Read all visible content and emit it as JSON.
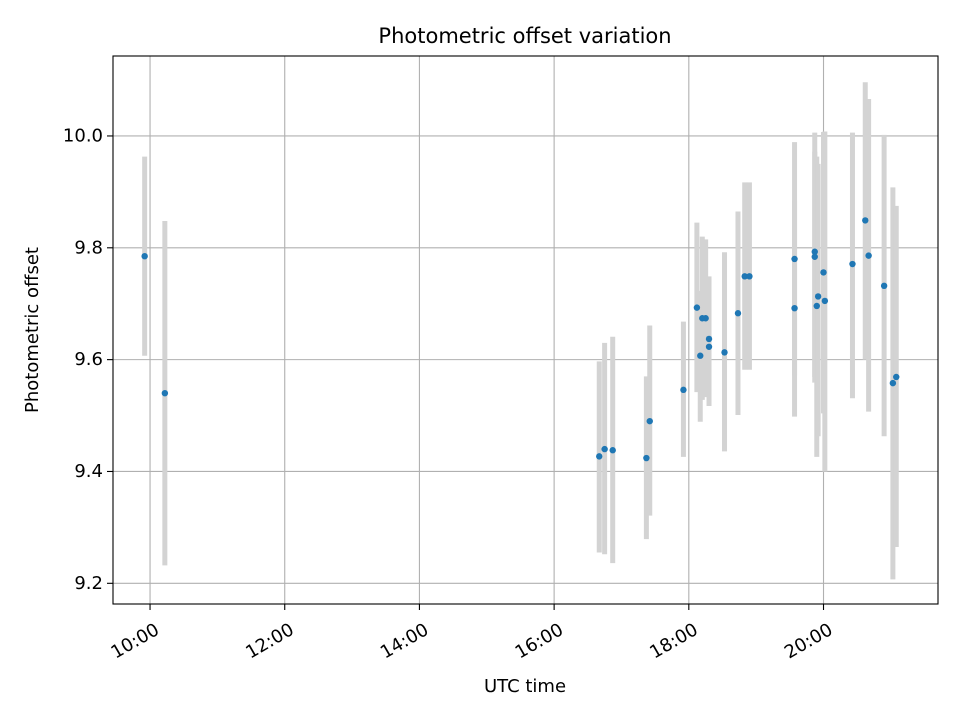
{
  "chart_data": {
    "type": "scatter",
    "title": "Photometric offset variation",
    "xlabel": "UTC time",
    "ylabel": "Photometric offset",
    "x_unit": "hours UTC",
    "xlim": [
      9.45,
      21.7
    ],
    "ylim": [
      9.163,
      10.143
    ],
    "x_ticks": [
      {
        "value": 10,
        "label": "10:00"
      },
      {
        "value": 12,
        "label": "12:00"
      },
      {
        "value": 14,
        "label": "14:00"
      },
      {
        "value": 16,
        "label": "16:00"
      },
      {
        "value": 18,
        "label": "18:00"
      },
      {
        "value": 20,
        "label": "20:00"
      }
    ],
    "y_ticks": [
      {
        "value": 9.2,
        "label": "9.2"
      },
      {
        "value": 9.4,
        "label": "9.4"
      },
      {
        "value": 9.6,
        "label": "9.6"
      },
      {
        "value": 9.8,
        "label": "9.8"
      },
      {
        "value": 10.0,
        "label": "10.0"
      }
    ],
    "grid": true,
    "point_color": "#1f77b4",
    "errorbar_color": "#d3d3d3",
    "points": [
      {
        "x": 9.92,
        "y": 9.785,
        "ylo": 9.607,
        "yhi": 9.963
      },
      {
        "x": 10.22,
        "y": 9.54,
        "ylo": 9.232,
        "yhi": 9.848
      },
      {
        "x": 16.67,
        "y": 9.427,
        "ylo": 9.255,
        "yhi": 9.597
      },
      {
        "x": 16.75,
        "y": 9.44,
        "ylo": 9.252,
        "yhi": 9.63
      },
      {
        "x": 16.87,
        "y": 9.438,
        "ylo": 9.236,
        "yhi": 9.641
      },
      {
        "x": 17.37,
        "y": 9.424,
        "ylo": 9.279,
        "yhi": 9.57
      },
      {
        "x": 17.42,
        "y": 9.49,
        "ylo": 9.321,
        "yhi": 9.661
      },
      {
        "x": 17.92,
        "y": 9.546,
        "ylo": 9.426,
        "yhi": 9.668
      },
      {
        "x": 18.12,
        "y": 9.693,
        "ylo": 9.542,
        "yhi": 9.845
      },
      {
        "x": 18.17,
        "y": 9.607,
        "ylo": 9.489,
        "yhi": 9.723
      },
      {
        "x": 18.2,
        "y": 9.674,
        "ylo": 9.528,
        "yhi": 9.82
      },
      {
        "x": 18.25,
        "y": 9.674,
        "ylo": 9.533,
        "yhi": 9.815
      },
      {
        "x": 18.3,
        "y": 9.637,
        "ylo": 9.536,
        "yhi": 9.749
      },
      {
        "x": 18.3,
        "y": 9.623,
        "ylo": 9.517,
        "yhi": 9.728
      },
      {
        "x": 18.53,
        "y": 9.613,
        "ylo": 9.436,
        "yhi": 9.792
      },
      {
        "x": 18.73,
        "y": 9.683,
        "ylo": 9.501,
        "yhi": 9.865
      },
      {
        "x": 18.83,
        "y": 9.749,
        "ylo": 9.582,
        "yhi": 9.917
      },
      {
        "x": 18.9,
        "y": 9.749,
        "ylo": 9.582,
        "yhi": 9.917
      },
      {
        "x": 19.57,
        "y": 9.78,
        "ylo": 9.572,
        "yhi": 9.989
      },
      {
        "x": 19.57,
        "y": 9.692,
        "ylo": 9.498,
        "yhi": 9.885
      },
      {
        "x": 19.87,
        "y": 9.793,
        "ylo": 9.559,
        "yhi": 10.006
      },
      {
        "x": 19.87,
        "y": 9.784,
        "ylo": 9.569,
        "yhi": 9.972
      },
      {
        "x": 19.9,
        "y": 9.696,
        "ylo": 9.426,
        "yhi": 9.963
      },
      {
        "x": 19.92,
        "y": 9.713,
        "ylo": 9.463,
        "yhi": 9.95
      },
      {
        "x": 20.0,
        "y": 9.756,
        "ylo": 9.504,
        "yhi": 10.007
      },
      {
        "x": 20.02,
        "y": 9.705,
        "ylo": 9.4,
        "yhi": 10.008
      },
      {
        "x": 20.43,
        "y": 9.771,
        "ylo": 9.531,
        "yhi": 10.006
      },
      {
        "x": 20.62,
        "y": 9.849,
        "ylo": 9.6,
        "yhi": 10.096
      },
      {
        "x": 20.67,
        "y": 9.786,
        "ylo": 9.507,
        "yhi": 10.066
      },
      {
        "x": 20.9,
        "y": 9.732,
        "ylo": 9.463,
        "yhi": 10.002
      },
      {
        "x": 21.03,
        "y": 9.558,
        "ylo": 9.207,
        "yhi": 9.908
      },
      {
        "x": 21.08,
        "y": 9.569,
        "ylo": 9.265,
        "yhi": 9.875
      }
    ]
  }
}
